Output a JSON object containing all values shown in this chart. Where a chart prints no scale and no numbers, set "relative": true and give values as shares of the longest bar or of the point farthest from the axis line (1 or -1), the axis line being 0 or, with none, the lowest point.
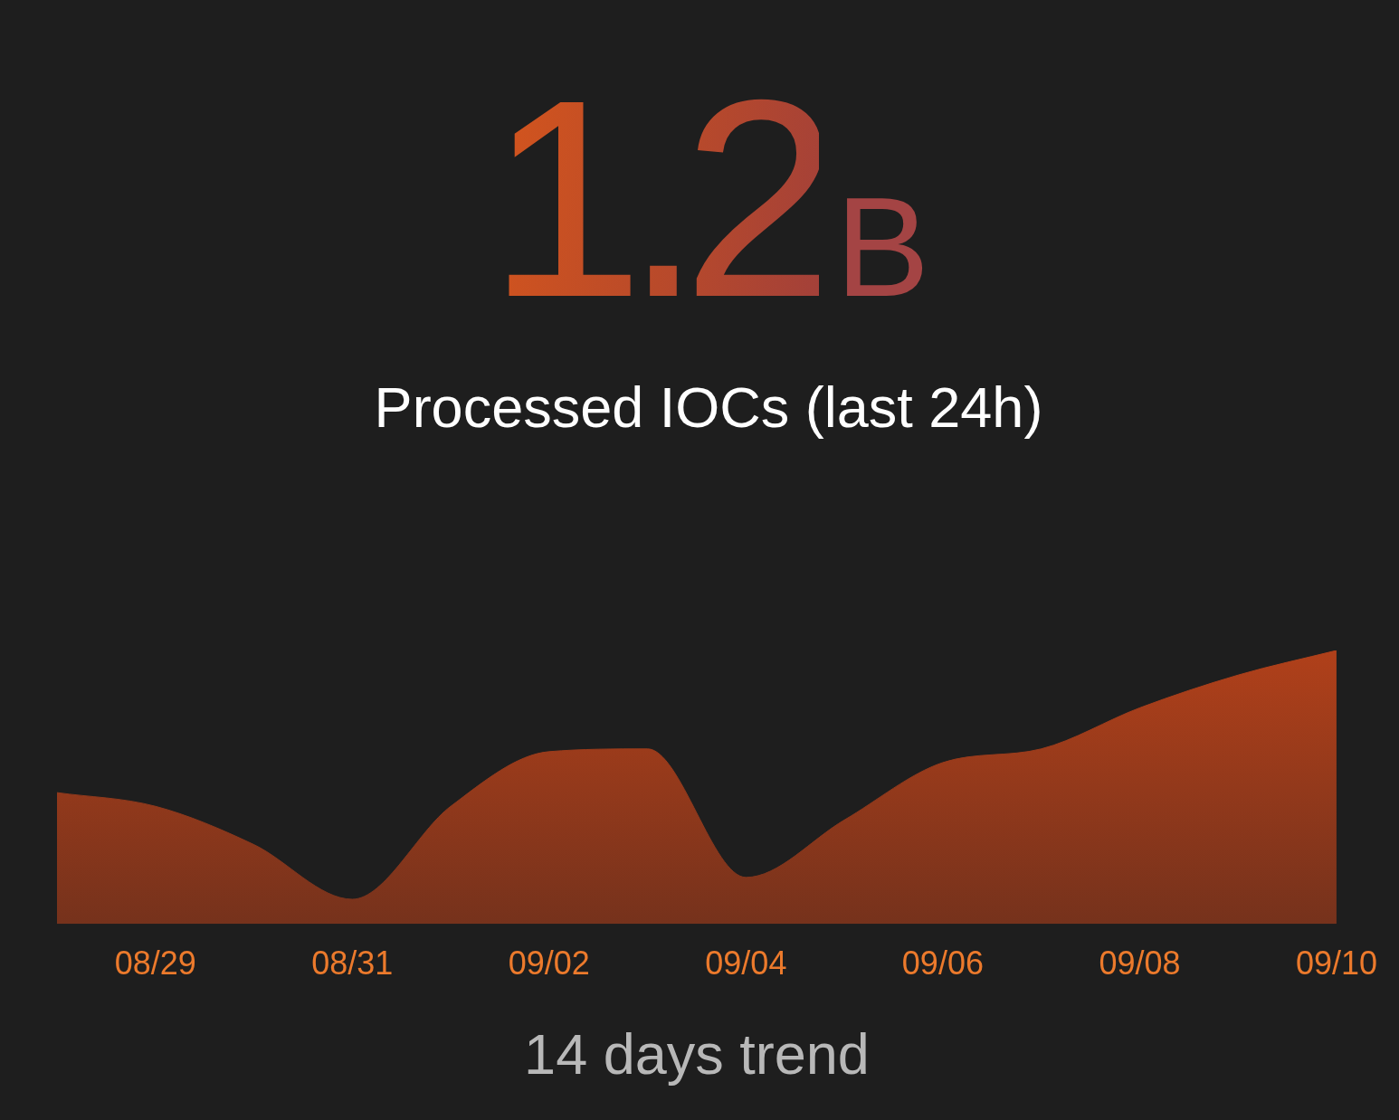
{
  "chart_data": {
    "type": "area",
    "title": "1.2B",
    "subtitle": "Processed IOCs (last 24h)",
    "xlabel": "14 days trend",
    "categories": [
      null,
      "08/29",
      null,
      "08/31",
      null,
      "09/02",
      null,
      "09/04",
      null,
      "09/06",
      null,
      "09/08",
      null,
      "09/10"
    ],
    "values": [
      0.48,
      0.43,
      0.29,
      0.09,
      0.43,
      0.63,
      0.64,
      0.17,
      0.38,
      0.59,
      0.64,
      0.79,
      0.91,
      1
    ],
    "color": "#b0401a",
    "relative": true
  }
}
